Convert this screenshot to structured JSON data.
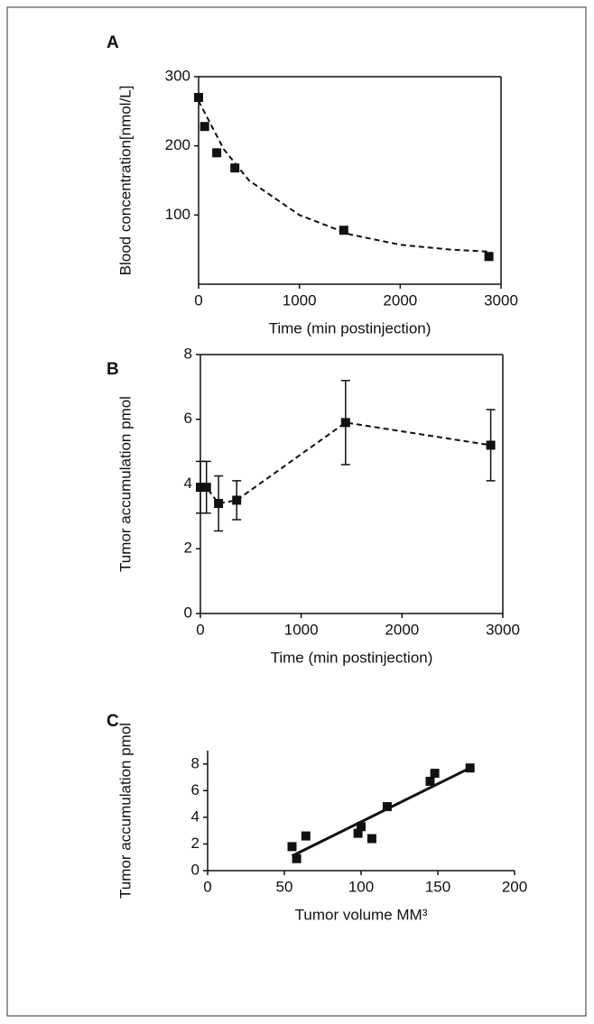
{
  "chart_data": [
    {
      "type": "scatter",
      "panel": "A",
      "xlabel": "Time (min postinjection)",
      "ylabel": "Blood concentration[nmol/L]",
      "xlim": [
        0,
        3000
      ],
      "xticks": [
        0,
        1000,
        2000,
        3000
      ],
      "ylim": [
        0,
        300
      ],
      "yticks": [
        100,
        200,
        300
      ],
      "frame": true,
      "series": [
        {
          "x": [
            0,
            60,
            180,
            360,
            1440,
            2880
          ],
          "values": [
            270,
            228,
            190,
            168,
            78,
            40
          ],
          "marker": "square",
          "line": "none",
          "color": "#111111"
        },
        {
          "x": [
            0,
            250,
            500,
            1000,
            1500,
            2000,
            2500,
            2900
          ],
          "values": [
            265,
            195,
            150,
            100,
            72,
            57,
            50,
            47
          ],
          "marker": "none",
          "line": "dashed",
          "color": "#111111"
        }
      ]
    },
    {
      "type": "line",
      "panel": "B",
      "xlabel": "Time (min postinjection)",
      "ylabel": "Tumor accumulation pmol",
      "xlim": [
        0,
        3000
      ],
      "xticks": [
        0,
        1000,
        2000,
        3000
      ],
      "ylim": [
        0,
        8
      ],
      "yticks": [
        0,
        2,
        4,
        6,
        8
      ],
      "frame": true,
      "series": [
        {
          "x": [
            0,
            60,
            180,
            360,
            1440,
            2880
          ],
          "values": [
            3.9,
            3.9,
            3.4,
            3.5,
            5.9,
            5.2
          ],
          "errors": [
            0.8,
            0.8,
            0.85,
            0.6,
            1.3,
            1.1
          ],
          "marker": "square",
          "line": "dashed",
          "color": "#111111"
        }
      ]
    },
    {
      "type": "scatter",
      "panel": "C",
      "xlabel": "Tumor volume MM³",
      "ylabel": "Tumor accumulation pmol",
      "xlim": [
        0,
        200
      ],
      "xticks": [
        0,
        50,
        100,
        150,
        200
      ],
      "ylim": [
        0,
        9
      ],
      "yticks": [
        0,
        2,
        4,
        6,
        8
      ],
      "frame": false,
      "series": [
        {
          "x": [
            55,
            58,
            64,
            98,
            100,
            107,
            117,
            145,
            148,
            171
          ],
          "values": [
            1.8,
            0.9,
            2.6,
            2.8,
            3.3,
            2.4,
            4.8,
            6.7,
            7.3,
            7.7
          ],
          "marker": "square",
          "line": "none",
          "color": "#111111"
        },
        {
          "x": [
            55,
            171
          ],
          "values": [
            1.1,
            7.7
          ],
          "marker": "none",
          "line": "solid",
          "color": "#111111"
        }
      ]
    }
  ]
}
